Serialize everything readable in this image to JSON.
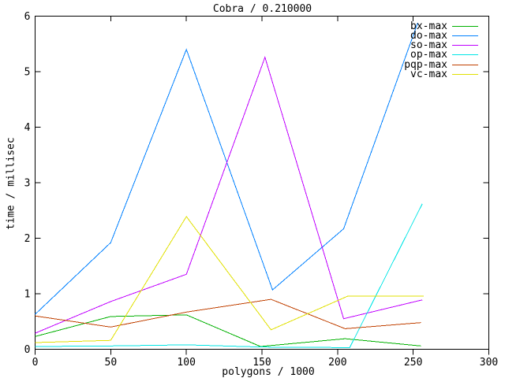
{
  "chart_data": {
    "type": "line",
    "title": "Cobra / 0.210000",
    "xlabel": "polygons / 1000",
    "ylabel": "time / millisec",
    "xlim": [
      0,
      300
    ],
    "ylim": [
      0,
      6
    ],
    "xticks": [
      0,
      50,
      100,
      150,
      200,
      250,
      300
    ],
    "yticks": [
      0,
      1,
      2,
      3,
      4,
      5,
      6
    ],
    "grid": false,
    "legend_position": "top-right",
    "background": "#ffffff",
    "border_color": "#000000",
    "series": [
      {
        "name": "bx-max",
        "color": "#00b000",
        "x": [
          0,
          50,
          100,
          149,
          205,
          255
        ],
        "y": [
          0.23,
          0.59,
          0.62,
          0.05,
          0.19,
          0.06
        ]
      },
      {
        "name": "do-max",
        "color": "#0080ff",
        "x": [
          0,
          50,
          100,
          157,
          204,
          253
        ],
        "y": [
          0.63,
          1.92,
          5.4,
          1.07,
          2.17,
          5.88
        ]
      },
      {
        "name": "so-max",
        "color": "#c000ff",
        "x": [
          0,
          50,
          100,
          152,
          204,
          256
        ],
        "y": [
          0.29,
          0.86,
          1.35,
          5.26,
          0.55,
          0.89
        ]
      },
      {
        "name": "op-max",
        "color": "#00e5e5",
        "x": [
          0,
          50,
          100,
          150,
          208,
          256
        ],
        "y": [
          0.05,
          0.06,
          0.08,
          0.04,
          0.03,
          2.62
        ]
      },
      {
        "name": "pqp-max",
        "color": "#c04000",
        "x": [
          0,
          50,
          100,
          156,
          205,
          255
        ],
        "y": [
          0.6,
          0.4,
          0.67,
          0.9,
          0.37,
          0.48
        ]
      },
      {
        "name": "vc-max",
        "color": "#e0e000",
        "x": [
          0,
          50,
          100,
          156,
          207,
          257
        ],
        "y": [
          0.12,
          0.16,
          2.39,
          0.35,
          0.96,
          0.96
        ]
      }
    ]
  }
}
